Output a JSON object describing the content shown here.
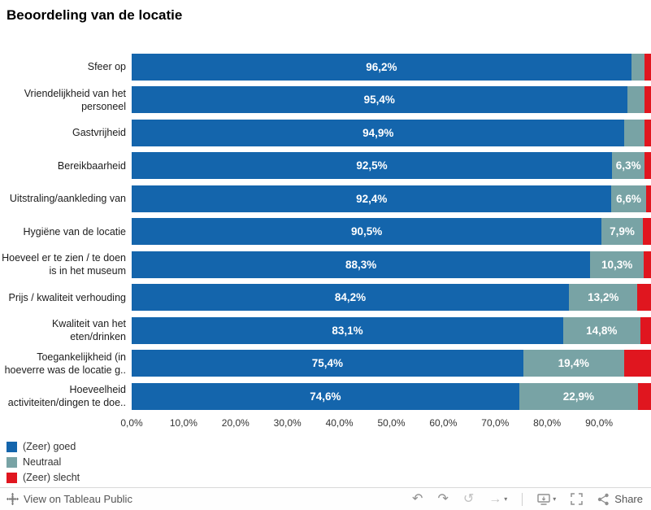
{
  "title": "Beoordeling van de locatie",
  "chart_data": {
    "type": "bar",
    "orientation": "horizontal",
    "stacked": true,
    "xlim": [
      0,
      100
    ],
    "grid": false,
    "legend_position": "bottom-left",
    "categories": [
      "Sfeer op",
      "Vriendelijkheid van het personeel",
      "Gastvrijheid",
      "Bereikbaarheid",
      "Uitstraling/aankleding van",
      "Hygiëne van de locatie",
      "Hoeveel er te zien / te doen is in het museum",
      "Prijs / kwaliteit verhouding",
      "Kwaliteit van het eten/drinken",
      "Toegankelijkheid (in hoeverre was de locatie g..",
      "Hoeveelheid activiteiten/dingen te doe.."
    ],
    "series": [
      {
        "key": "good",
        "name": "(Zeer) goed",
        "color": "#1465ac",
        "values": [
          96.2,
          95.4,
          94.9,
          92.5,
          92.4,
          90.5,
          88.3,
          84.2,
          83.1,
          75.4,
          74.6
        ],
        "labels": [
          "96,2%",
          "95,4%",
          "94,9%",
          "92,5%",
          "92,4%",
          "90,5%",
          "88,3%",
          "84,2%",
          "83,1%",
          "75,4%",
          "74,6%"
        ]
      },
      {
        "key": "neutral",
        "name": "Neutraal",
        "color": "#78a3a5",
        "values": [
          2.6,
          3.3,
          3.9,
          6.3,
          6.6,
          7.9,
          10.3,
          13.2,
          14.8,
          19.4,
          22.9
        ],
        "labels": [
          "",
          "",
          "",
          "6,3%",
          "6,6%",
          "7,9%",
          "10,3%",
          "13,2%",
          "14,8%",
          "19,4%",
          "22,9%"
        ]
      },
      {
        "key": "bad",
        "name": "(Zeer) slecht",
        "color": "#e0161f",
        "values": [
          1.2,
          1.3,
          1.2,
          1.2,
          1.0,
          1.6,
          1.4,
          2.6,
          2.1,
          5.2,
          2.5
        ],
        "labels": [
          "",
          "",
          "",
          "",
          "",
          "",
          "",
          "",
          "",
          "",
          ""
        ]
      }
    ],
    "x_ticks": [
      "0,0%",
      "10,0%",
      "20,0%",
      "30,0%",
      "40,0%",
      "50,0%",
      "60,0%",
      "70,0%",
      "80,0%",
      "90,0%"
    ],
    "x_tick_values": [
      0,
      10,
      20,
      30,
      40,
      50,
      60,
      70,
      80,
      90
    ]
  },
  "legend": [
    {
      "label": "(Zeer) goed",
      "color": "#1465ac"
    },
    {
      "label": "Neutraal",
      "color": "#78a3a5"
    },
    {
      "label": "(Zeer) slecht",
      "color": "#e0161f"
    }
  ],
  "toolbar": {
    "view_label": "View on Tableau Public",
    "share_label": "Share",
    "glyphs": {
      "undo": "↶",
      "redo": "↷",
      "replay": "↺",
      "forward": "→",
      "caret": "▾"
    }
  }
}
